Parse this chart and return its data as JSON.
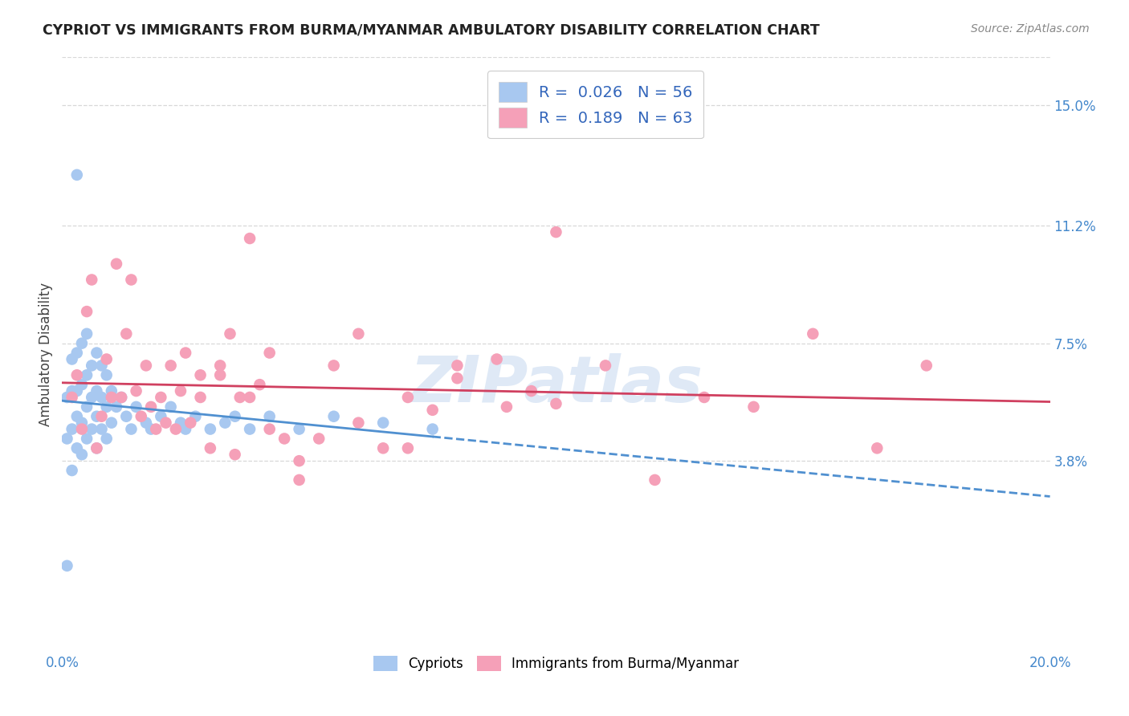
{
  "title": "CYPRIOT VS IMMIGRANTS FROM BURMA/MYANMAR AMBULATORY DISABILITY CORRELATION CHART",
  "source": "Source: ZipAtlas.com",
  "ylabel": "Ambulatory Disability",
  "xlim": [
    0.0,
    0.2
  ],
  "ylim": [
    -0.022,
    0.165
  ],
  "right_yticks": [
    0.038,
    0.075,
    0.112,
    0.15
  ],
  "right_yticklabels": [
    "3.8%",
    "7.5%",
    "11.2%",
    "15.0%"
  ],
  "legend_row1": "R =  0.026   N = 56",
  "legend_row2": "R =  0.189   N = 63",
  "cypriot_color": "#a8c8f0",
  "burma_color": "#f5a0b8",
  "trendline_cypriot_color": "#5090d0",
  "trendline_burma_color": "#d04060",
  "watermark": "ZIPatlas",
  "background_color": "#ffffff",
  "grid_color": "#d8d8d8",
  "cy_x": [
    0.001,
    0.001,
    0.001,
    0.002,
    0.002,
    0.002,
    0.002,
    0.003,
    0.003,
    0.003,
    0.003,
    0.004,
    0.004,
    0.004,
    0.004,
    0.005,
    0.005,
    0.005,
    0.005,
    0.006,
    0.006,
    0.006,
    0.007,
    0.007,
    0.007,
    0.007,
    0.008,
    0.008,
    0.008,
    0.009,
    0.009,
    0.009,
    0.01,
    0.01,
    0.011,
    0.012,
    0.013,
    0.014,
    0.015,
    0.017,
    0.018,
    0.02,
    0.022,
    0.024,
    0.025,
    0.027,
    0.03,
    0.033,
    0.035,
    0.038,
    0.042,
    0.048,
    0.055,
    0.065,
    0.075,
    0.003
  ],
  "cy_y": [
    0.005,
    0.045,
    0.058,
    0.035,
    0.048,
    0.06,
    0.07,
    0.042,
    0.052,
    0.06,
    0.072,
    0.04,
    0.05,
    0.062,
    0.075,
    0.045,
    0.055,
    0.065,
    0.078,
    0.048,
    0.058,
    0.068,
    0.042,
    0.052,
    0.06,
    0.072,
    0.048,
    0.058,
    0.068,
    0.045,
    0.055,
    0.065,
    0.05,
    0.06,
    0.055,
    0.058,
    0.052,
    0.048,
    0.055,
    0.05,
    0.048,
    0.052,
    0.055,
    0.05,
    0.048,
    0.052,
    0.048,
    0.05,
    0.052,
    0.048,
    0.052,
    0.048,
    0.052,
    0.05,
    0.048,
    0.128
  ],
  "bm_x": [
    0.002,
    0.003,
    0.004,
    0.005,
    0.006,
    0.007,
    0.008,
    0.009,
    0.01,
    0.011,
    0.012,
    0.013,
    0.014,
    0.015,
    0.016,
    0.017,
    0.018,
    0.019,
    0.02,
    0.021,
    0.022,
    0.023,
    0.024,
    0.025,
    0.026,
    0.028,
    0.03,
    0.032,
    0.034,
    0.036,
    0.038,
    0.04,
    0.042,
    0.045,
    0.048,
    0.052,
    0.055,
    0.06,
    0.065,
    0.07,
    0.075,
    0.08,
    0.088,
    0.095,
    0.1,
    0.11,
    0.12,
    0.13,
    0.14,
    0.152,
    0.165,
    0.175,
    0.048,
    0.06,
    0.07,
    0.08,
    0.09,
    0.1,
    0.028,
    0.032,
    0.035,
    0.038,
    0.042
  ],
  "bm_y": [
    0.058,
    0.065,
    0.048,
    0.085,
    0.095,
    0.042,
    0.052,
    0.07,
    0.058,
    0.1,
    0.058,
    0.078,
    0.095,
    0.06,
    0.052,
    0.068,
    0.055,
    0.048,
    0.058,
    0.05,
    0.068,
    0.048,
    0.06,
    0.072,
    0.05,
    0.065,
    0.042,
    0.068,
    0.078,
    0.058,
    0.108,
    0.062,
    0.072,
    0.045,
    0.032,
    0.045,
    0.068,
    0.05,
    0.042,
    0.058,
    0.054,
    0.064,
    0.07,
    0.06,
    0.056,
    0.068,
    0.032,
    0.058,
    0.055,
    0.078,
    0.042,
    0.068,
    0.038,
    0.078,
    0.042,
    0.068,
    0.055,
    0.11,
    0.058,
    0.065,
    0.04,
    0.058,
    0.048
  ]
}
